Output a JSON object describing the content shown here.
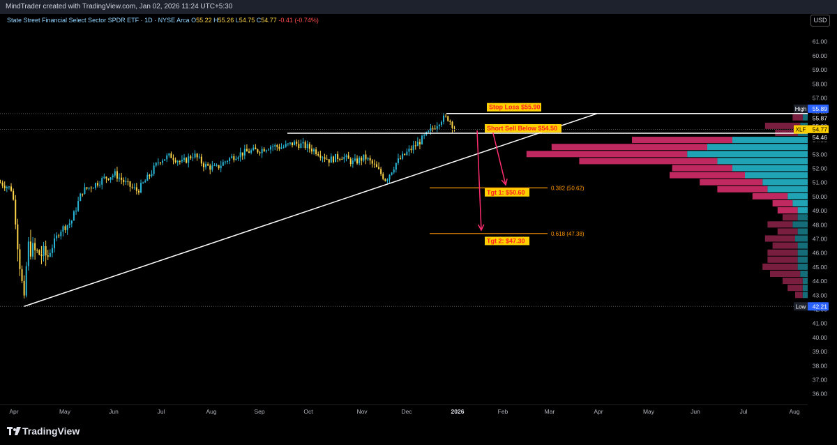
{
  "header": {
    "credit": "MindTrader created with TradingView.com, Jan 02, 2026 11:24 UTC+5:30",
    "legend_title": "State Street Financial Select Sector SPDR ETF · 1D · NYSE Arca",
    "o_label": "O",
    "o_value": "55.22",
    "h_label": "H",
    "h_value": "55.26",
    "l_label": "L",
    "l_value": "54.75",
    "c_label": "C",
    "c_value": "54.77",
    "change": "-0.41 (-0.74%)",
    "currency": "USD"
  },
  "footer": {
    "brand": "TradingView"
  },
  "colors": {
    "up": "#29b6d6",
    "down": "#ffd54a",
    "vp_buy": "#1fa3b5",
    "vp_sell": "#c0295f",
    "vp_buy_dim": "#146d78",
    "vp_sell_dim": "#7a1e3f",
    "fib": "#ff9800",
    "arrow": "#ff2d6f",
    "annotation_bg": "#ffd000",
    "annotation_text": "#ff1f1f"
  },
  "chart_data": {
    "type": "candlestick",
    "symbol": "XLF",
    "y_axis": {
      "ylim": [
        35.3,
        62.1
      ],
      "ticks": [
        "36.00",
        "37.00",
        "38.00",
        "39.00",
        "40.00",
        "41.00",
        "42.00",
        "43.00",
        "44.00",
        "45.00",
        "46.00",
        "47.00",
        "48.00",
        "49.00",
        "50.00",
        "51.00",
        "52.00",
        "53.00",
        "54.00",
        "55.00",
        "56.00",
        "57.00",
        "58.00",
        "59.00",
        "60.00",
        "61.00"
      ]
    },
    "x_axis": {
      "ticks": [
        "Apr",
        "May",
        "Jun",
        "Jul",
        "Aug",
        "Sep",
        "Oct",
        "Nov",
        "Dec",
        "2026",
        "Feb",
        "Mar",
        "Apr",
        "May",
        "Jun",
        "Jul",
        "Aug"
      ],
      "tick_dates": [
        "2025-04-01",
        "2025-05-01",
        "2025-06-01",
        "2025-07-01",
        "2025-08-01",
        "2025-09-01",
        "2025-10-01",
        "2025-11-01",
        "2025-12-01",
        "2026-01-01",
        "2026-02-01",
        "2026-03-01",
        "2026-04-01",
        "2026-05-01",
        "2026-06-01",
        "2026-07-01",
        "2026-08-01"
      ]
    },
    "price_path": [
      {
        "date": "2025-03-24",
        "close": 51.0
      },
      {
        "date": "2025-03-31",
        "close": 50.5
      },
      {
        "date": "2025-04-03",
        "close": 47.0
      },
      {
        "date": "2025-04-07",
        "close": 42.3
      },
      {
        "date": "2025-04-09",
        "close": 46.5
      },
      {
        "date": "2025-04-14",
        "close": 46.0
      },
      {
        "date": "2025-04-21",
        "close": 45.8
      },
      {
        "date": "2025-04-28",
        "close": 47.6
      },
      {
        "date": "2025-05-05",
        "close": 48.2
      },
      {
        "date": "2025-05-12",
        "close": 50.4
      },
      {
        "date": "2025-05-19",
        "close": 50.8
      },
      {
        "date": "2025-05-26",
        "close": 51.3
      },
      {
        "date": "2025-06-02",
        "close": 51.6
      },
      {
        "date": "2025-06-09",
        "close": 50.9
      },
      {
        "date": "2025-06-16",
        "close": 50.4
      },
      {
        "date": "2025-06-23",
        "close": 51.4
      },
      {
        "date": "2025-06-30",
        "close": 52.6
      },
      {
        "date": "2025-07-07",
        "close": 52.9
      },
      {
        "date": "2025-07-14",
        "close": 52.4
      },
      {
        "date": "2025-07-21",
        "close": 53.0
      },
      {
        "date": "2025-07-28",
        "close": 52.2
      },
      {
        "date": "2025-08-04",
        "close": 52.0
      },
      {
        "date": "2025-08-11",
        "close": 52.6
      },
      {
        "date": "2025-08-18",
        "close": 53.0
      },
      {
        "date": "2025-08-25",
        "close": 53.2
      },
      {
        "date": "2025-09-01",
        "close": 53.3
      },
      {
        "date": "2025-09-08",
        "close": 53.6
      },
      {
        "date": "2025-09-15",
        "close": 53.5
      },
      {
        "date": "2025-09-22",
        "close": 53.8
      },
      {
        "date": "2025-09-29",
        "close": 53.6
      },
      {
        "date": "2025-10-06",
        "close": 53.2
      },
      {
        "date": "2025-10-13",
        "close": 52.6
      },
      {
        "date": "2025-10-20",
        "close": 52.9
      },
      {
        "date": "2025-10-27",
        "close": 52.4
      },
      {
        "date": "2025-11-03",
        "close": 52.8
      },
      {
        "date": "2025-11-10",
        "close": 52.1
      },
      {
        "date": "2025-11-17",
        "close": 51.2
      },
      {
        "date": "2025-11-24",
        "close": 52.4
      },
      {
        "date": "2025-12-01",
        "close": 53.1
      },
      {
        "date": "2025-12-08",
        "close": 53.8
      },
      {
        "date": "2025-12-15",
        "close": 54.6
      },
      {
        "date": "2025-12-22",
        "close": 55.5
      },
      {
        "date": "2025-12-26",
        "close": 55.6
      },
      {
        "date": "2025-12-31",
        "close": 54.77
      }
    ],
    "levels": {
      "high": {
        "label": "High",
        "value": "55.89",
        "price": 55.89
      },
      "current_upper": {
        "value": "55.87",
        "price": 55.87
      },
      "last": {
        "symbol": "XLF",
        "value": "54.77",
        "price": 54.77
      },
      "current_lower": {
        "value": "54.46",
        "price": 54.46
      },
      "low": {
        "label": "Low",
        "value": "42.21",
        "price": 42.21
      }
    },
    "annotations": {
      "stop_loss": {
        "text": "Stop Loss $55.90",
        "price": 55.9
      },
      "short_sell": {
        "text": "Short Sell Below $54.50",
        "price": 54.5
      },
      "tgt1": {
        "text": "Tgt 1: $50.60",
        "price": 50.6
      },
      "tgt2": {
        "text": "Tgt 2: $47.30",
        "price": 47.3
      }
    },
    "fibonacci": [
      {
        "label": "0.382 (50.62)",
        "price": 50.62
      },
      {
        "label": "0.618 (47.38)",
        "price": 47.38
      }
    ],
    "trendline": {
      "start": {
        "date": "2025-04-07",
        "price": 42.21
      },
      "end": {
        "date": "2026-03-31",
        "price": 55.89
      }
    },
    "volume_profile": [
      {
        "price": 55.6,
        "buy": 2,
        "sell": 4
      },
      {
        "price": 55.0,
        "buy": 3,
        "sell": 14
      },
      {
        "price": 54.5,
        "buy": 4,
        "sell": 9
      },
      {
        "price": 54.0,
        "buy": 30,
        "sell": 40
      },
      {
        "price": 53.5,
        "buy": 40,
        "sell": 62
      },
      {
        "price": 53.0,
        "buy": 48,
        "sell": 64
      },
      {
        "price": 52.5,
        "buy": 36,
        "sell": 55
      },
      {
        "price": 52.0,
        "buy": 30,
        "sell": 24
      },
      {
        "price": 51.5,
        "buy": 25,
        "sell": 30
      },
      {
        "price": 51.0,
        "buy": 18,
        "sell": 25
      },
      {
        "price": 50.5,
        "buy": 16,
        "sell": 20
      },
      {
        "price": 50.0,
        "buy": 8,
        "sell": 14
      },
      {
        "price": 49.5,
        "buy": 6,
        "sell": 8
      },
      {
        "price": 49.0,
        "buy": 4,
        "sell": 8
      },
      {
        "price": 48.5,
        "buy": 4,
        "sell": 6
      },
      {
        "price": 48.0,
        "buy": 6,
        "sell": 10
      },
      {
        "price": 47.5,
        "buy": 4,
        "sell": 8
      },
      {
        "price": 47.0,
        "buy": 5,
        "sell": 12
      },
      {
        "price": 46.5,
        "buy": 4,
        "sell": 10
      },
      {
        "price": 46.0,
        "buy": 4,
        "sell": 12
      },
      {
        "price": 45.5,
        "buy": 4,
        "sell": 12
      },
      {
        "price": 45.0,
        "buy": 4,
        "sell": 14
      },
      {
        "price": 44.5,
        "buy": 3,
        "sell": 12
      },
      {
        "price": 44.0,
        "buy": 2,
        "sell": 8
      },
      {
        "price": 43.5,
        "buy": 2,
        "sell": 6
      },
      {
        "price": 43.0,
        "buy": 2,
        "sell": 3
      }
    ]
  }
}
